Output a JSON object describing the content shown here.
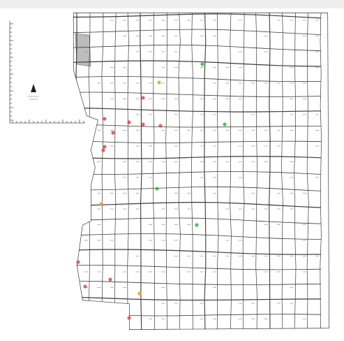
{
  "map": {
    "road_color": "#3a3a3a",
    "marker_colors": [
      "#e04848",
      "#3cb043",
      "#e0a030"
    ]
  }
}
